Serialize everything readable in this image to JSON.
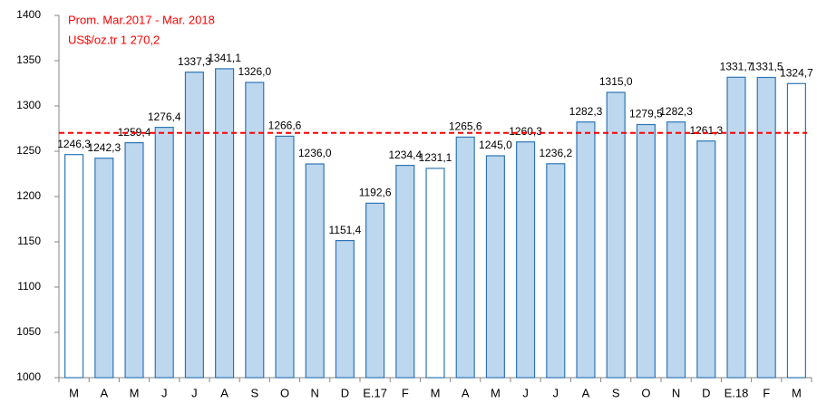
{
  "chart_data": {
    "type": "bar",
    "annotations": [
      "Prom. Mar.2017 - Mar. 2018",
      "US$/oz.tr 1 270,2"
    ],
    "reference_line": {
      "value": 1270.2,
      "color": "#ff0000",
      "dashed": true
    },
    "categories": [
      "M",
      "A",
      "M",
      "J",
      "J",
      "A",
      "S",
      "O",
      "N",
      "D",
      "E.17",
      "F",
      "M",
      "A",
      "M",
      "J",
      "J",
      "A",
      "S",
      "O",
      "N",
      "D",
      "E.18",
      "F",
      "M"
    ],
    "values": [
      1246.3,
      1242.3,
      1259.4,
      1276.4,
      1337.3,
      1341.1,
      1326.0,
      1266.6,
      1236.0,
      1151.4,
      1192.6,
      1234.4,
      1231.1,
      1265.6,
      1245.0,
      1260.3,
      1236.2,
      1282.3,
      1315.0,
      1279.5,
      1282.3,
      1261.3,
      1331.7,
      1331.5,
      1324.7
    ],
    "value_labels": [
      "1246,3",
      "1242,3",
      "1259,4",
      "1276,4",
      "1337,3",
      "1341,1",
      "1326,0",
      "1266,6",
      "1236,0",
      "1151,4",
      "1192,6",
      "1234,4",
      "1231,1",
      "1265,6",
      "1245,0",
      "1260,3",
      "1236,2",
      "1282,3",
      "1315,0",
      "1279,5",
      "1282,3",
      "1261,3",
      "1331,7",
      "1331,5",
      "1324,7"
    ],
    "colors": [
      "#ffffff",
      "#bdd7ee",
      "#bdd7ee",
      "#bdd7ee",
      "#bdd7ee",
      "#bdd7ee",
      "#bdd7ee",
      "#bdd7ee",
      "#bdd7ee",
      "#bdd7ee",
      "#bdd7ee",
      "#bdd7ee",
      "#ffffff",
      "#bdd7ee",
      "#bdd7ee",
      "#bdd7ee",
      "#bdd7ee",
      "#bdd7ee",
      "#bdd7ee",
      "#bdd7ee",
      "#bdd7ee",
      "#bdd7ee",
      "#bdd7ee",
      "#bdd7ee",
      "#ffffff"
    ],
    "edge_color": "#2e75b6",
    "ylim": [
      1000,
      1400
    ],
    "yticks": [
      1000,
      1050,
      1100,
      1150,
      1200,
      1250,
      1300,
      1350,
      1400
    ],
    "grid": false
  }
}
